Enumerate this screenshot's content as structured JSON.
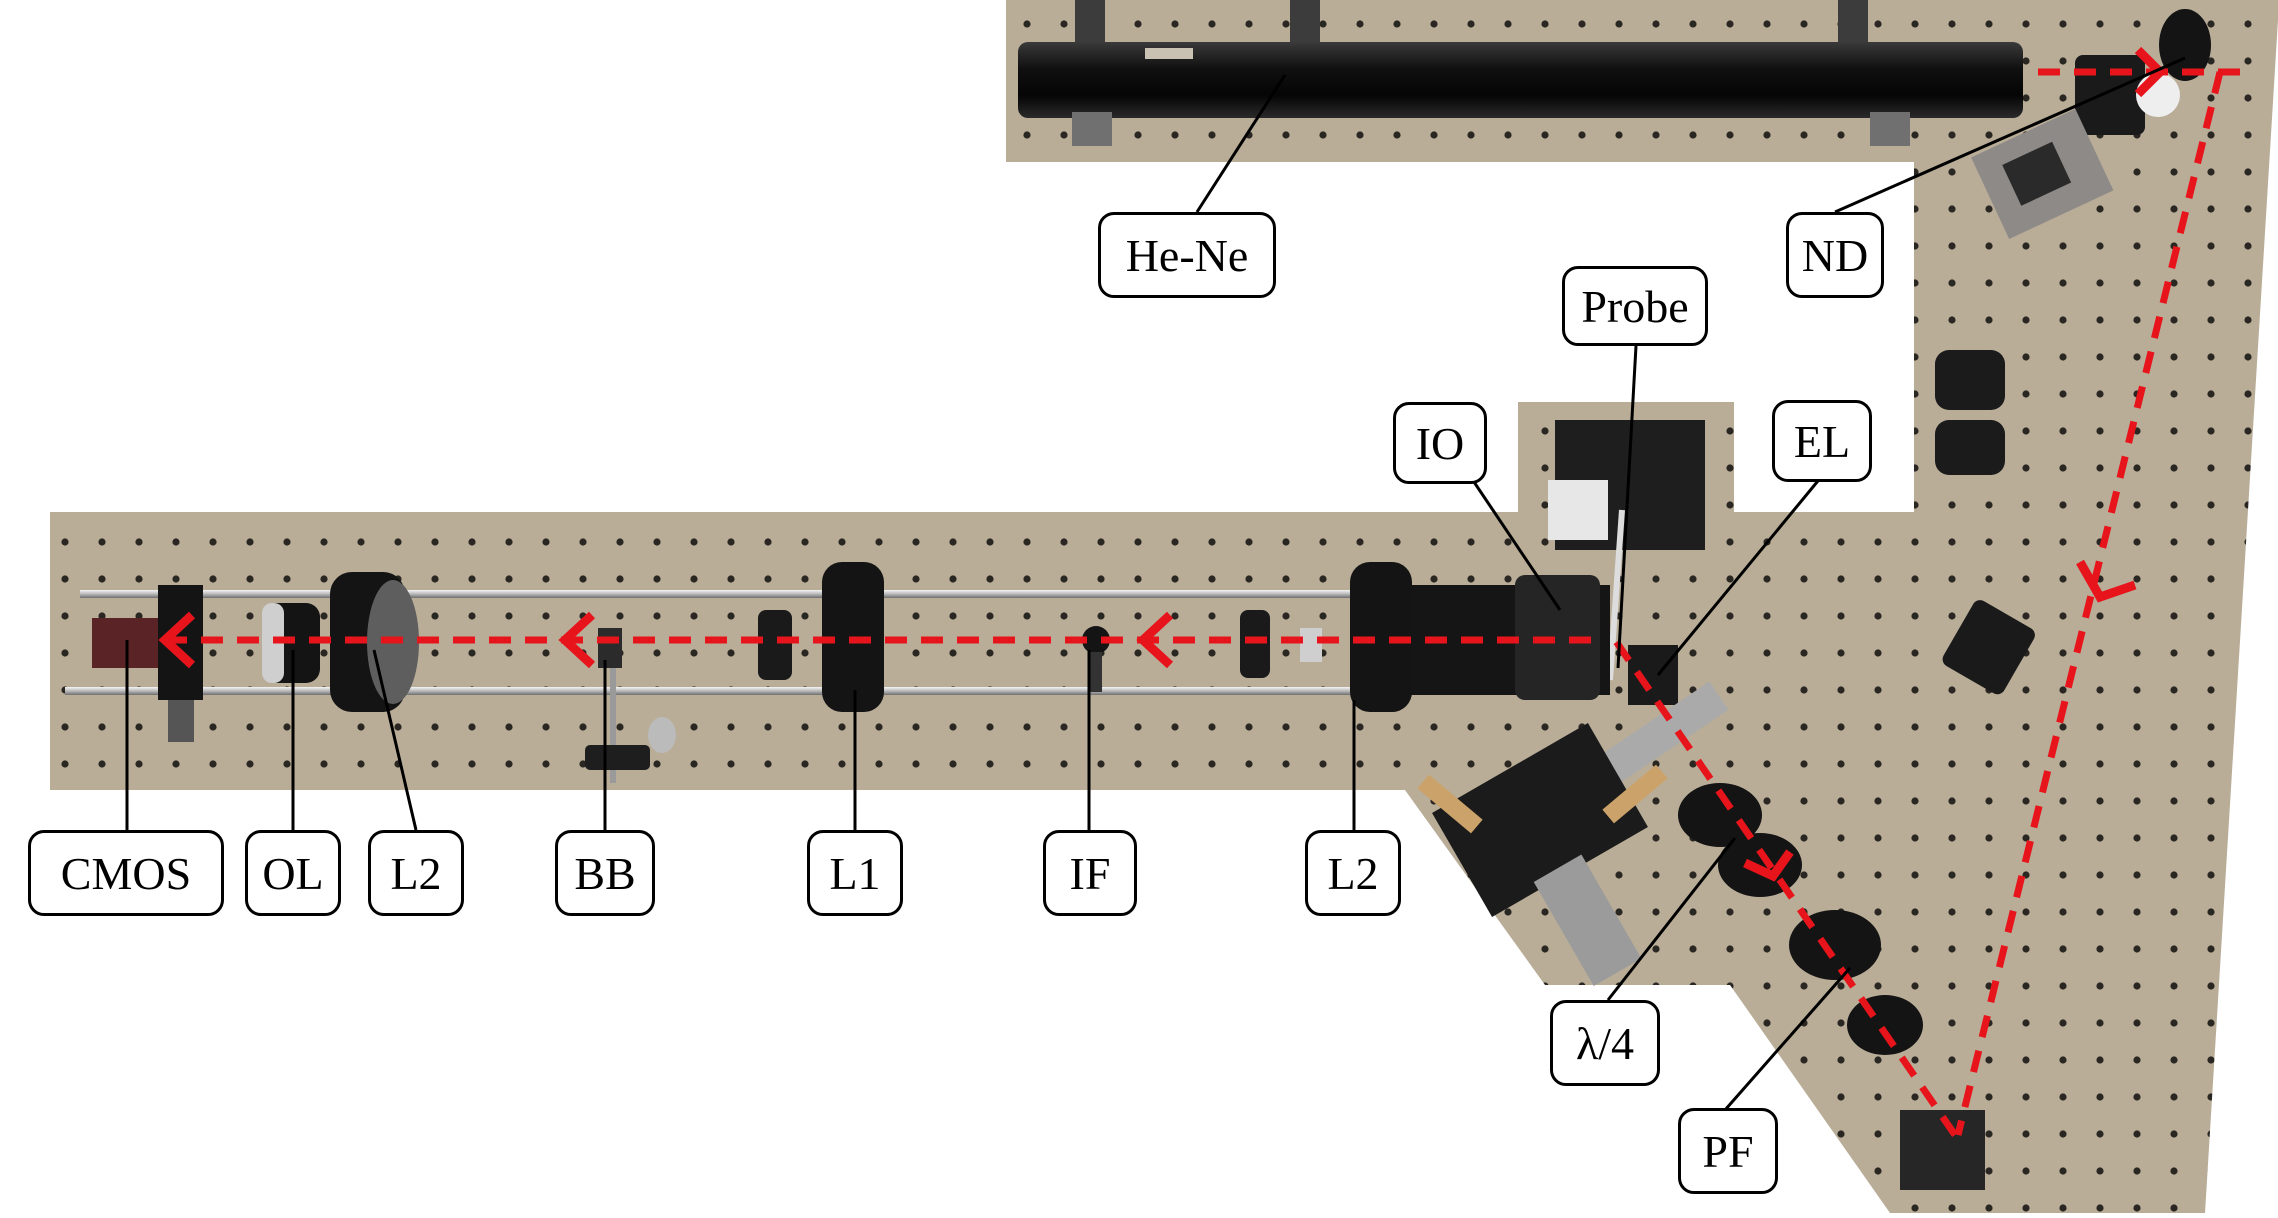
{
  "figure": {
    "description_labels": {
      "he_ne": "He-Ne",
      "nd": "ND",
      "probe": "Probe",
      "io": "IO",
      "el": "EL",
      "cmos": "CMOS",
      "ol": "OL",
      "l2_left": "L2",
      "bb": "BB",
      "l1": "L1",
      "if": "IF",
      "l2_right": "L2",
      "quarter_wave": "λ/4",
      "pf": "PF"
    },
    "colors": {
      "background": "#ffffff",
      "breadboard": "#b9ad98",
      "breadboard_hole": "#2a2622",
      "optics_black": "#141414",
      "rail_silver": "#cfcfcf",
      "mount_grey": "#8a8784",
      "beam_red": "#e8141b",
      "camera_maroon": "#5a2326",
      "label_border": "#000000"
    },
    "icons": [
      "laser-tube",
      "lens-mount",
      "camera",
      "beam-arrow"
    ]
  }
}
